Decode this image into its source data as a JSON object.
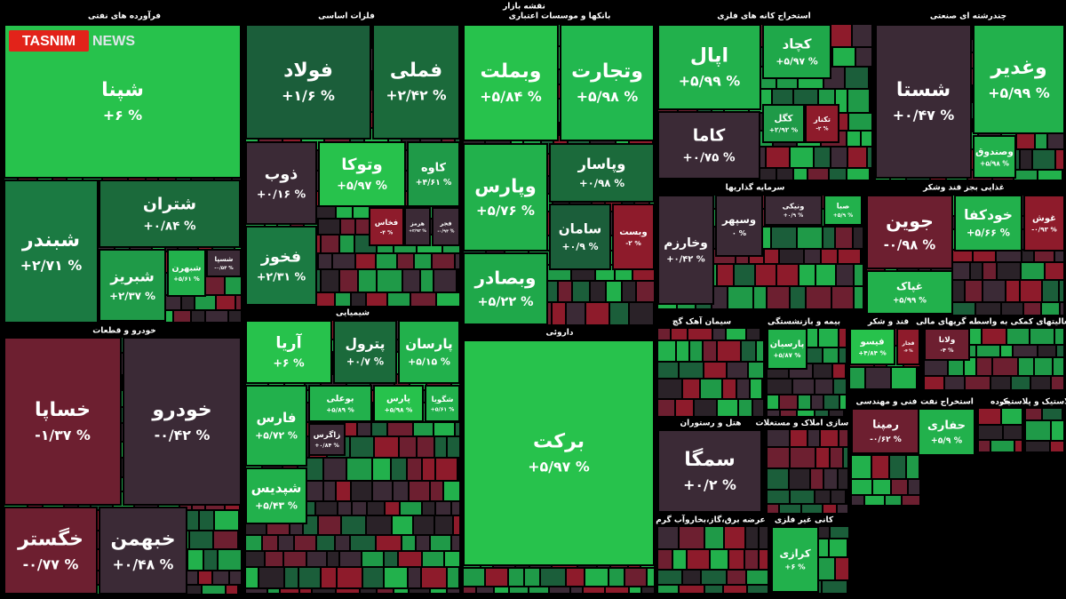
{
  "title": "نقشه بازار",
  "logo": {
    "brand": "TASNIM",
    "suffix": "NEWS"
  },
  "sectors": [
    {
      "title": "فرآورده های نفتی",
      "tiles": [
        {
          "name": "شپنا",
          "change": "+۶ %",
          "color": "#27c24c"
        },
        {
          "name": "شبندر",
          "change": "+۲/۷۱ %",
          "color": "#1b7a42"
        },
        {
          "name": "شتران",
          "change": "+۰/۸۴ %",
          "color": "#1b6a3b"
        },
        {
          "name": "شبریز",
          "change": "+۲/۳۷ %",
          "color": "#1f9a48"
        },
        {
          "name": "شبهرن",
          "change": "+۵/۶۱ %",
          "color": "#22b14c"
        },
        {
          "name": "شسپا",
          "change": "-۰/۵۴ %",
          "color": "#3b2a36"
        }
      ]
    },
    {
      "title": "خودرو و قطعات",
      "tiles": [
        {
          "name": "خساپا",
          "change": "-۱/۳۷ %",
          "color": "#6d1f30"
        },
        {
          "name": "خودرو",
          "change": "-۰/۴۲ %",
          "color": "#3b2a36"
        },
        {
          "name": "خگستر",
          "change": "-۰/۷۷ %",
          "color": "#6d1f30"
        },
        {
          "name": "خبهمن",
          "change": "+۰/۴۸ %",
          "color": "#3b2a36"
        }
      ]
    },
    {
      "title": "فلزات اساسی",
      "tiles": [
        {
          "name": "فولاد",
          "change": "+۱/۶ %",
          "color": "#1b5e3a"
        },
        {
          "name": "فملی",
          "change": "+۲/۴۲ %",
          "color": "#1b6a3b"
        },
        {
          "name": "ذوب",
          "change": "+۰/۱۶ %",
          "color": "#3b2a36"
        },
        {
          "name": "فخوز",
          "change": "+۲/۳۱ %",
          "color": "#1b7a42"
        },
        {
          "name": "وتوکا",
          "change": "+۵/۹۷ %",
          "color": "#27c24c"
        },
        {
          "name": "کاوه",
          "change": "+۴/۶۱ %",
          "color": "#1f9a48"
        },
        {
          "name": "فخاس",
          "change": "-۴ %",
          "color": "#8e1b2b"
        },
        {
          "name": "هرمز",
          "change": "+۲/۹۲ %",
          "color": "#3b2a36"
        },
        {
          "name": "فجر",
          "change": "-۰/۹۳ %",
          "color": "#3b2a36"
        }
      ]
    },
    {
      "title": "شیمیایی",
      "tiles": [
        {
          "name": "آریا",
          "change": "+۶ %",
          "color": "#27c24c"
        },
        {
          "name": "پترول",
          "change": "+۰/۷ %",
          "color": "#1b6a3b"
        },
        {
          "name": "پارسان",
          "change": "+۵/۱۵ %",
          "color": "#22b14c"
        },
        {
          "name": "فارس",
          "change": "+۵/۷۲ %",
          "color": "#22b14c"
        },
        {
          "name": "بوعلی",
          "change": "+۵/۸۹ %",
          "color": "#22b14c"
        },
        {
          "name": "پارس",
          "change": "+۵/۹۸ %",
          "color": "#27c24c"
        },
        {
          "name": "شگویا",
          "change": "+۵/۶۱ %",
          "color": "#22b14c"
        },
        {
          "name": "شپدیس",
          "change": "+۵/۴۳ %",
          "color": "#22b14c"
        },
        {
          "name": "زاگرس",
          "change": "+۰/۸۴ %",
          "color": "#3b2a36"
        }
      ]
    },
    {
      "title": "بانکها و موسسات اعتباری",
      "tiles": [
        {
          "name": "وبملت",
          "change": "+۵/۸۴ %",
          "color": "#27c24c"
        },
        {
          "name": "وتجارت",
          "change": "+۵/۹۸ %",
          "color": "#22b84f"
        },
        {
          "name": "وپارس",
          "change": "+۵/۷۶ %",
          "color": "#22b14c"
        },
        {
          "name": "وبصادر",
          "change": "+۵/۲۲ %",
          "color": "#1fa84a"
        },
        {
          "name": "وپاسار",
          "change": "+۰/۹۸ %",
          "color": "#1b6a3b"
        },
        {
          "name": "سامان",
          "change": "+۰/۹ %",
          "color": "#1b5e3a"
        },
        {
          "name": "وبست",
          "change": "-۲ %",
          "color": "#8e1b2b"
        }
      ]
    },
    {
      "title": "داروئی",
      "tiles": [
        {
          "name": "برکت",
          "change": "+۵/۹۷ %",
          "color": "#27c24c"
        }
      ]
    },
    {
      "title": "استخراج کانه های فلزی",
      "tiles": [
        {
          "name": "اپال",
          "change": "+۵/۹۹ %",
          "color": "#22b14c"
        },
        {
          "name": "کچاد",
          "change": "+۵/۹۷ %",
          "color": "#1fa84a"
        },
        {
          "name": "کاما",
          "change": "+۰/۷۵ %",
          "color": "#3b2a36"
        },
        {
          "name": "کگل",
          "change": "+۲/۹۲ %",
          "color": "#1f9a48"
        },
        {
          "name": "تکنار",
          "change": "-۲ %",
          "color": "#8e1b2b"
        }
      ]
    },
    {
      "title": "چندرشته ای صنعتی",
      "tiles": [
        {
          "name": "شستا",
          "change": "+۰/۴۷ %",
          "color": "#3b2a36"
        },
        {
          "name": "وغدیر",
          "change": "+۵/۹۹ %",
          "color": "#22b14c"
        },
        {
          "name": "وصندوق",
          "change": "+۵/۹۸ %",
          "color": "#22b14c"
        }
      ]
    },
    {
      "title": "سرمایه گذاریها",
      "tiles": [
        {
          "name": "وخارزم",
          "change": "+۰/۴۲ %",
          "color": "#3b2a36"
        },
        {
          "name": "وسپهر",
          "change": "۰ %",
          "color": "#3b2a36"
        },
        {
          "name": "ونیکی",
          "change": "+۰/۹ %",
          "color": "#3b2a36"
        },
        {
          "name": "صبا",
          "change": "+۵/۹ %",
          "color": "#22b14c"
        }
      ]
    },
    {
      "title": "غذایی بجز قند وشکر",
      "tiles": [
        {
          "name": "جوین",
          "change": "-۰/۹۸ %",
          "color": "#6d1f30"
        },
        {
          "name": "خودکفا",
          "change": "+۵/۶۶ %",
          "color": "#22b14c"
        },
        {
          "name": "غوش",
          "change": "-۰/۹۳ %",
          "color": "#8e1b2b"
        },
        {
          "name": "غپاک",
          "change": "+۵/۹۹ %",
          "color": "#22b14c"
        }
      ]
    },
    {
      "title": "سیمان آهک گچ",
      "tiles": []
    },
    {
      "title": "بیمه و بازنشستگی",
      "tiles": [
        {
          "name": "پارسیان",
          "change": "+۵/۸۷ %",
          "color": "#22b14c"
        }
      ]
    },
    {
      "title": "قند و شکر",
      "tiles": [
        {
          "name": "فیسو",
          "change": "+۴/۸۴ %",
          "color": "#27c24c"
        },
        {
          "name": "قجار",
          "change": "-۴ %",
          "color": "#8e1b2b"
        }
      ]
    },
    {
      "title": "فعالیتهای کمکی به واسطه گریهای مالی",
      "tiles": [
        {
          "name": "ولانا",
          "change": "-۴ %",
          "color": "#6d1f30"
        }
      ]
    },
    {
      "title": "هتل و رستوران",
      "tiles": [
        {
          "name": "سمگا",
          "change": "+۰/۲ %",
          "color": "#3b2a36"
        }
      ]
    },
    {
      "title": "انبوه سازی املاک و مستغلات",
      "tiles": []
    },
    {
      "title": "فنی و مهندسی",
      "tiles": [
        {
          "name": "رمپنا",
          "change": "-۰/۶۲ %",
          "color": "#6d1f30"
        }
      ]
    },
    {
      "title": "استخراج نفت",
      "tiles": [
        {
          "name": "حفاری",
          "change": "+۵/۹ %",
          "color": "#22b14c"
        }
      ]
    },
    {
      "title": "خرده",
      "tiles": []
    },
    {
      "title": "لاستیک و پلاستیک",
      "tiles": []
    },
    {
      "title": "عرضه برق،گاز،بخاروآب گرم",
      "tiles": []
    },
    {
      "title": "کانی غیر فلزی",
      "tiles": [
        {
          "name": "کرازی",
          "change": "+۶ %",
          "color": "#22b14c"
        }
      ]
    }
  ]
}
